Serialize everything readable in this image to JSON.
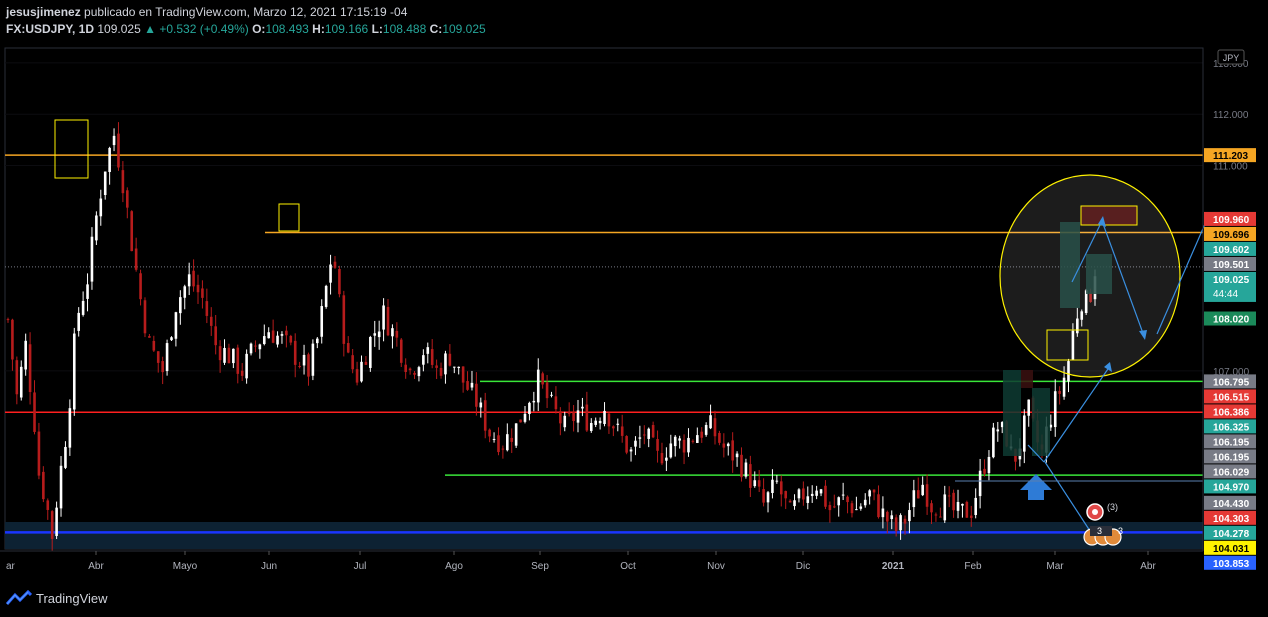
{
  "header": {
    "author": "jesusjimenez",
    "published": "publicado en TradingView.com, Marzo 12, 2021 17:15:19 -04",
    "symbol": "FX:USDJPY, 1D",
    "price": "109.025",
    "change_arrow": "▲",
    "change": "+0.532 (+0.49%)",
    "open_label": "O:",
    "open": "108.493",
    "high_label": "H:",
    "high": "109.166",
    "low_label": "L:",
    "low": "108.488",
    "close_label": "C:",
    "close": "109.025"
  },
  "footer": {
    "brand": "TradingView"
  },
  "currency_badge": "JPY",
  "countdown": "44:44",
  "event_badges": [
    "3",
    "3",
    "3"
  ],
  "colors": {
    "background": "#000000",
    "up_candle": "#ffffff",
    "down_candle": "#b71c1c",
    "yellow": "#fff200",
    "green_line": "#39e639",
    "red_line": "#ff1f1f",
    "blue_line": "#1a35ff",
    "arrow_blue": "#3a8fe0"
  },
  "chart_data": {
    "type": "candlestick",
    "ylim": [
      103.53,
      113.29
    ],
    "x_tick_labels": [
      "ar",
      "Abr",
      "Mayo",
      "Jun",
      "Jul",
      "Ago",
      "Sep",
      "Oct",
      "Nov",
      "Dic",
      "2021",
      "Feb",
      "Mar",
      "Abr"
    ],
    "y_axis_ticks": [
      "113.000",
      "112.000",
      "111.000",
      "107.000"
    ],
    "price_labels": [
      {
        "value": "111.203",
        "color": "#f5a623",
        "text_color": "#000000"
      },
      {
        "value": "109.960",
        "color": "#e53935",
        "text_color": "#ffffff"
      },
      {
        "value": "109.696",
        "color": "#f5a623",
        "text_color": "#000000"
      },
      {
        "value": "109.602",
        "color": "#26a69a",
        "text_color": "#ffffff"
      },
      {
        "value": "109.501",
        "color": "#787b86",
        "text_color": "#ffffff"
      },
      {
        "value": "109.025",
        "color": "#26a69a",
        "text_color": "#ffffff"
      },
      {
        "value": "108.020",
        "color": "#1b8a5a",
        "text_color": "#ffffff"
      },
      {
        "value": "106.795",
        "color": "#787b86",
        "text_color": "#ffffff"
      },
      {
        "value": "106.515",
        "color": "#e53935",
        "text_color": "#ffffff"
      },
      {
        "value": "106.386",
        "color": "#e53935",
        "text_color": "#ffffff"
      },
      {
        "value": "106.325",
        "color": "#26a69a",
        "text_color": "#ffffff"
      },
      {
        "value": "106.195",
        "color": "#787b86",
        "text_color": "#ffffff"
      },
      {
        "value": "106.195",
        "color": "#787b86",
        "text_color": "#ffffff"
      },
      {
        "value": "106.029",
        "color": "#787b86",
        "text_color": "#ffffff"
      },
      {
        "value": "104.970",
        "color": "#26a69a",
        "text_color": "#ffffff"
      },
      {
        "value": "104.430",
        "color": "#787b86",
        "text_color": "#ffffff"
      },
      {
        "value": "104.303",
        "color": "#e53935",
        "text_color": "#ffffff"
      },
      {
        "value": "104.278",
        "color": "#26a69a",
        "text_color": "#ffffff"
      },
      {
        "value": "104.031",
        "color": "#fff200",
        "text_color": "#000000"
      },
      {
        "value": "103.853",
        "color": "#2962ff",
        "text_color": "#ffffff"
      }
    ],
    "horizontal_lines": [
      {
        "value": 111.203,
        "color": "#f5a623",
        "name": "resistance-1"
      },
      {
        "value": 109.696,
        "color": "#f5a623",
        "name": "resistance-2"
      },
      {
        "value": 106.795,
        "color": "#39e639",
        "name": "green-level-1"
      },
      {
        "value": 104.97,
        "color": "#39e639",
        "name": "green-level-2"
      },
      {
        "value": 106.195,
        "color": "#ff1f1f",
        "name": "red-level"
      },
      {
        "value": 103.853,
        "color": "#1a35ff",
        "name": "blue-level"
      }
    ],
    "anchors": [
      {
        "t": 0,
        "p": 108.0
      },
      {
        "t": 4,
        "p": 106.5
      },
      {
        "t": 8,
        "p": 107.5
      },
      {
        "t": 12,
        "p": 106.0
      },
      {
        "t": 14,
        "p": 105.0
      },
      {
        "t": 17,
        "p": 104.5
      },
      {
        "t": 20,
        "p": 103.8
      },
      {
        "t": 23,
        "p": 104.8
      },
      {
        "t": 27,
        "p": 106.0
      },
      {
        "t": 31,
        "p": 108.0
      },
      {
        "t": 36,
        "p": 108.8
      },
      {
        "t": 40,
        "p": 110.0
      },
      {
        "t": 44,
        "p": 111.0
      },
      {
        "t": 48,
        "p": 111.6
      },
      {
        "t": 52,
        "p": 110.7
      },
      {
        "t": 56,
        "p": 109.5
      },
      {
        "t": 60,
        "p": 108.4
      },
      {
        "t": 64,
        "p": 107.5
      },
      {
        "t": 70,
        "p": 107.0
      },
      {
        "t": 76,
        "p": 108.3
      },
      {
        "t": 82,
        "p": 108.8
      },
      {
        "t": 88,
        "p": 108.4
      },
      {
        "t": 94,
        "p": 107.5
      },
      {
        "t": 100,
        "p": 107.3
      },
      {
        "t": 106,
        "p": 107.0
      },
      {
        "t": 112,
        "p": 107.5
      },
      {
        "t": 118,
        "p": 107.8
      },
      {
        "t": 124,
        "p": 107.6
      },
      {
        "t": 130,
        "p": 107.3
      },
      {
        "t": 136,
        "p": 107.0
      },
      {
        "t": 140,
        "p": 107.6
      },
      {
        "t": 144,
        "p": 108.6
      },
      {
        "t": 147,
        "p": 109.4
      },
      {
        "t": 150,
        "p": 108.3
      },
      {
        "t": 154,
        "p": 107.2
      },
      {
        "t": 158,
        "p": 106.9
      },
      {
        "t": 164,
        "p": 107.6
      },
      {
        "t": 170,
        "p": 108.1
      },
      {
        "t": 176,
        "p": 107.6
      },
      {
        "t": 182,
        "p": 107.0
      },
      {
        "t": 188,
        "p": 107.4
      },
      {
        "t": 194,
        "p": 107.0
      },
      {
        "t": 200,
        "p": 107.3
      },
      {
        "t": 206,
        "p": 106.8
      },
      {
        "t": 212,
        "p": 106.4
      },
      {
        "t": 218,
        "p": 105.8
      },
      {
        "t": 224,
        "p": 105.6
      },
      {
        "t": 230,
        "p": 105.9
      },
      {
        "t": 236,
        "p": 106.5
      },
      {
        "t": 240,
        "p": 106.8
      },
      {
        "t": 246,
        "p": 106.3
      },
      {
        "t": 252,
        "p": 105.9
      },
      {
        "t": 258,
        "p": 106.2
      },
      {
        "t": 264,
        "p": 106.0
      },
      {
        "t": 270,
        "p": 106.3
      },
      {
        "t": 276,
        "p": 105.8
      },
      {
        "t": 282,
        "p": 105.4
      },
      {
        "t": 288,
        "p": 105.8
      },
      {
        "t": 294,
        "p": 105.3
      },
      {
        "t": 300,
        "p": 105.6
      },
      {
        "t": 306,
        "p": 105.6
      },
      {
        "t": 312,
        "p": 105.8
      },
      {
        "t": 318,
        "p": 105.9
      },
      {
        "t": 324,
        "p": 105.5
      },
      {
        "t": 330,
        "p": 105.3
      },
      {
        "t": 336,
        "p": 104.9
      },
      {
        "t": 342,
        "p": 104.4
      },
      {
        "t": 348,
        "p": 104.8
      },
      {
        "t": 354,
        "p": 104.2
      },
      {
        "t": 360,
        "p": 104.6
      },
      {
        "t": 366,
        "p": 104.8
      },
      {
        "t": 372,
        "p": 104.3
      },
      {
        "t": 378,
        "p": 104.5
      },
      {
        "t": 384,
        "p": 104.3
      },
      {
        "t": 390,
        "p": 104.6
      },
      {
        "t": 396,
        "p": 104.2
      },
      {
        "t": 402,
        "p": 103.9
      },
      {
        "t": 406,
        "p": 104.1
      },
      {
        "t": 410,
        "p": 104.5
      },
      {
        "t": 414,
        "p": 104.8
      },
      {
        "t": 418,
        "p": 104.4
      },
      {
        "t": 424,
        "p": 104.4
      },
      {
        "t": 430,
        "p": 104.2
      },
      {
        "t": 436,
        "p": 104.3
      },
      {
        "t": 440,
        "p": 104.9
      },
      {
        "t": 444,
        "p": 105.5
      },
      {
        "t": 448,
        "p": 105.9
      },
      {
        "t": 452,
        "p": 105.7
      },
      {
        "t": 455,
        "p": 105.2
      },
      {
        "t": 458,
        "p": 105.6
      },
      {
        "t": 462,
        "p": 106.2
      },
      {
        "t": 465,
        "p": 105.7
      },
      {
        "t": 468,
        "p": 105.4
      },
      {
        "t": 471,
        "p": 106.0
      },
      {
        "t": 474,
        "p": 106.4
      },
      {
        "t": 477,
        "p": 106.7
      },
      {
        "t": 480,
        "p": 107.2
      },
      {
        "t": 483,
        "p": 108.0
      },
      {
        "t": 486,
        "p": 108.4
      },
      {
        "t": 489,
        "p": 108.3
      },
      {
        "t": 492,
        "p": 109.0
      }
    ]
  }
}
